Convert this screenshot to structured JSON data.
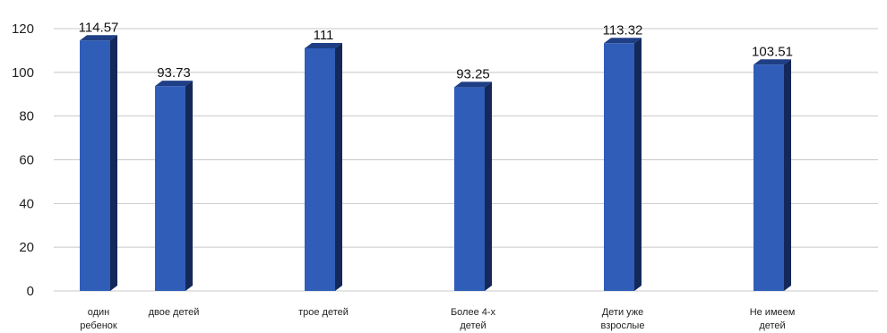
{
  "chart_data": {
    "type": "bar",
    "categories": [
      [
        "один",
        "ребенок"
      ],
      [
        "двое детей"
      ],
      [
        "трое детей"
      ],
      [
        "Более 4-х",
        "детей"
      ],
      [
        "Дети уже",
        "взрослые"
      ],
      [
        "Не имеем",
        "детей"
      ]
    ],
    "values": [
      114.57,
      93.73,
      111,
      93.25,
      113.32,
      103.51
    ],
    "value_labels": [
      "114.57",
      "93.73",
      "111",
      "93.25",
      "113.32",
      "103.51"
    ],
    "y_ticks": [
      "0",
      "20",
      "40",
      "60",
      "80",
      "100",
      "120"
    ],
    "ylim": [
      0,
      120
    ],
    "grid": true,
    "legend": "none",
    "title": "",
    "xlabel": "",
    "ylabel": "",
    "colors": {
      "bar_front": "#2f5db8",
      "bar_side": "#14285a",
      "bar_top": "#1e3f85",
      "grid": "#c8c8c8"
    }
  }
}
